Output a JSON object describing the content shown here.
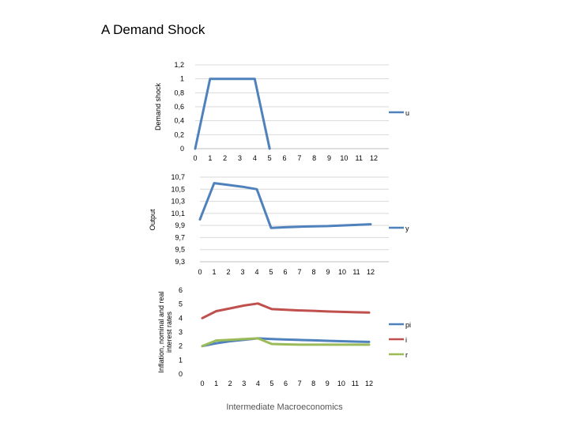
{
  "slide": {
    "title": "A Demand Shock",
    "footer": "Intermediate Macroeconomics"
  },
  "chart_data": [
    {
      "type": "line",
      "ylabel": "Demand shock",
      "xlabel": "",
      "x": [
        0,
        1,
        2,
        3,
        4,
        5,
        6,
        7,
        8,
        9,
        10,
        11,
        12
      ],
      "x_tick_labels": [
        "0",
        "1",
        "2",
        "3",
        "4",
        "5",
        "6",
        "7",
        "8",
        "9",
        "10",
        "11",
        "12"
      ],
      "ylim": [
        0,
        1.2
      ],
      "y_ticks": [
        0,
        0.2,
        0.4,
        0.6,
        0.8,
        1,
        1.2
      ],
      "y_tick_labels": [
        "0",
        "0,2",
        "0,4",
        "0,6",
        "0,8",
        "1",
        "1,2"
      ],
      "grid": true,
      "legend": "right",
      "series": [
        {
          "name": "u",
          "color": "#4f81bd",
          "x": [
            0,
            1,
            2,
            3,
            4,
            5
          ],
          "values": [
            0,
            1,
            1,
            1,
            1,
            0
          ]
        }
      ]
    },
    {
      "type": "line",
      "ylabel": "Output",
      "xlabel": "",
      "x": [
        0,
        1,
        2,
        3,
        4,
        5,
        6,
        7,
        8,
        9,
        10,
        11,
        12
      ],
      "x_tick_labels": [
        "0",
        "1",
        "2",
        "3",
        "4",
        "5",
        "6",
        "7",
        "8",
        "9",
        "10",
        "11",
        "12"
      ],
      "ylim": [
        9.3,
        10.7
      ],
      "y_ticks": [
        9.3,
        9.5,
        9.7,
        9.9,
        10.1,
        10.3,
        10.5,
        10.7
      ],
      "y_tick_labels": [
        "9,3",
        "9,5",
        "9,7",
        "9,9",
        "10,1",
        "10,3",
        "10,5",
        "10,7"
      ],
      "grid": true,
      "legend": "right",
      "series": [
        {
          "name": "y",
          "color": "#4f81bd",
          "x": [
            0,
            1,
            2,
            3,
            4,
            5,
            6,
            7,
            8,
            9,
            10,
            11,
            12
          ],
          "values": [
            10.0,
            10.6,
            10.57,
            10.54,
            10.5,
            9.86,
            9.87,
            9.88,
            9.885,
            9.89,
            9.9,
            9.91,
            9.92
          ]
        }
      ]
    },
    {
      "type": "line",
      "ylabel": "Inflation, nominal and real interest rates",
      "xlabel": "",
      "x": [
        0,
        1,
        2,
        3,
        4,
        5,
        6,
        7,
        8,
        9,
        10,
        11,
        12
      ],
      "x_tick_labels": [
        "0",
        "1",
        "2",
        "3",
        "4",
        "5",
        "6",
        "7",
        "8",
        "9",
        "10",
        "11",
        "12"
      ],
      "ylim": [
        0,
        6
      ],
      "y_ticks": [
        0,
        1,
        2,
        3,
        4,
        5,
        6
      ],
      "y_tick_labels": [
        "0",
        "1",
        "2",
        "3",
        "4",
        "5",
        "6"
      ],
      "grid": false,
      "legend": "right",
      "series": [
        {
          "name": "pi",
          "color": "#4f81bd",
          "x": [
            0,
            1,
            2,
            3,
            4,
            5,
            6,
            7,
            8,
            9,
            10,
            11,
            12
          ],
          "values": [
            2.0,
            2.2,
            2.35,
            2.45,
            2.55,
            2.5,
            2.47,
            2.44,
            2.41,
            2.38,
            2.35,
            2.32,
            2.3
          ]
        },
        {
          "name": "i",
          "color": "#c0504d",
          "x": [
            0,
            1,
            2,
            3,
            4,
            5,
            6,
            7,
            8,
            9,
            10,
            11,
            12
          ],
          "values": [
            4.0,
            4.5,
            4.7,
            4.9,
            5.05,
            4.65,
            4.6,
            4.55,
            4.52,
            4.48,
            4.45,
            4.42,
            4.4
          ]
        },
        {
          "name": "r",
          "color": "#9bbb59",
          "x": [
            0,
            1,
            2,
            3,
            4,
            5,
            6,
            7,
            8,
            9,
            10,
            11,
            12
          ],
          "values": [
            2.0,
            2.4,
            2.45,
            2.5,
            2.55,
            2.15,
            2.12,
            2.1,
            2.1,
            2.1,
            2.1,
            2.1,
            2.1
          ]
        }
      ]
    }
  ]
}
